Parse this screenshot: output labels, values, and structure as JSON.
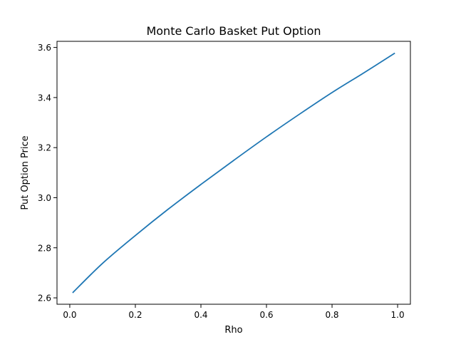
{
  "chart_data": {
    "type": "line",
    "title": "Monte Carlo Basket Put Option",
    "xlabel": "Rho",
    "ylabel": "Put Option Price",
    "xlim": [
      -0.039,
      1.039
    ],
    "ylim": [
      2.5745,
      3.6245
    ],
    "xticks": [
      0.0,
      0.2,
      0.4,
      0.6,
      0.8,
      1.0
    ],
    "xtick_labels": [
      "0.0",
      "0.2",
      "0.4",
      "0.6",
      "0.8",
      "1.0"
    ],
    "yticks": [
      2.6,
      2.8,
      3.0,
      3.2,
      3.4,
      3.6
    ],
    "ytick_labels": [
      "2.6",
      "2.8",
      "3.0",
      "3.2",
      "3.4",
      "3.6"
    ],
    "grid": false,
    "series": [
      {
        "color": "#1f77b4",
        "x": [
          0.01,
          0.1,
          0.2,
          0.3,
          0.4,
          0.5,
          0.6,
          0.7,
          0.8,
          0.9,
          0.99
        ],
        "y": [
          2.622,
          2.738,
          2.849,
          2.954,
          3.053,
          3.149,
          3.243,
          3.333,
          3.42,
          3.501,
          3.576
        ]
      }
    ]
  }
}
